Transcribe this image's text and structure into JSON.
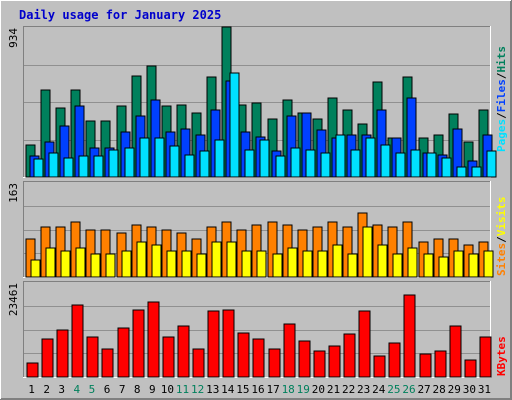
{
  "title": "Daily usage for January 2025",
  "colors": {
    "title": "#0000cc",
    "hits": "#00805c",
    "files": "#0040ff",
    "pages": "#00e0ff",
    "visits": "#ffff00",
    "sites": "#ff8000",
    "kbytes": "#ff0000",
    "weekend_label": "#00805c",
    "background": "#c0c0c0",
    "panel": "#c0c0c0"
  },
  "labels": {
    "pages": "Pages",
    "files": "Files",
    "hits": "Hits",
    "visits": "Visits",
    "sites": "Sites",
    "kbytes": "KBytes",
    "sep": "/"
  },
  "chart_data": [
    {
      "type": "bar",
      "panel": "hits-files-pages",
      "ymax_label": "934",
      "ylim": [
        0,
        934
      ],
      "grid": true,
      "categories": [
        "1",
        "2",
        "3",
        "4",
        "5",
        "6",
        "7",
        "8",
        "9",
        "10",
        "11",
        "12",
        "13",
        "14",
        "15",
        "16",
        "17",
        "18",
        "19",
        "20",
        "21",
        "22",
        "23",
        "24",
        "25",
        "26",
        "27",
        "28",
        "29",
        "30",
        "31"
      ],
      "weekend_days": [
        4,
        5,
        11,
        12,
        18,
        19,
        25,
        26
      ],
      "series": [
        {
          "name": "Hits",
          "values": [
            200,
            540,
            430,
            540,
            350,
            350,
            440,
            630,
            690,
            440,
            450,
            400,
            620,
            934,
            450,
            460,
            360,
            480,
            400,
            360,
            490,
            420,
            330,
            590,
            240,
            620,
            240,
            260,
            390,
            220,
            420
          ]
        },
        {
          "name": "Files",
          "values": [
            130,
            220,
            320,
            440,
            180,
            180,
            280,
            380,
            480,
            280,
            300,
            260,
            420,
            600,
            280,
            250,
            160,
            380,
            400,
            290,
            240,
            260,
            260,
            420,
            240,
            490,
            150,
            140,
            300,
            100,
            260
          ]
        },
        {
          "name": "Pages",
          "values": [
            110,
            150,
            120,
            130,
            130,
            170,
            180,
            240,
            240,
            190,
            140,
            160,
            230,
            650,
            170,
            230,
            130,
            180,
            170,
            150,
            260,
            170,
            240,
            200,
            150,
            170,
            150,
            120,
            60,
            60,
            160
          ]
        }
      ]
    },
    {
      "type": "bar",
      "panel": "visits-sites",
      "ymax_label": "163",
      "ylim": [
        0,
        163
      ],
      "grid": true,
      "series": [
        {
          "name": "Visits",
          "values": [
            30,
            50,
            45,
            50,
            40,
            40,
            45,
            60,
            55,
            45,
            45,
            40,
            60,
            60,
            45,
            45,
            40,
            50,
            45,
            45,
            55,
            40,
            85,
            55,
            40,
            50,
            40,
            35,
            45,
            40,
            45
          ]
        },
        {
          "name": "Sites",
          "values": [
            65,
            85,
            85,
            95,
            80,
            80,
            75,
            90,
            85,
            80,
            75,
            65,
            85,
            95,
            80,
            90,
            95,
            90,
            80,
            85,
            95,
            85,
            110,
            90,
            85,
            95,
            60,
            65,
            65,
            55,
            60
          ]
        }
      ]
    },
    {
      "type": "bar",
      "panel": "kbytes",
      "ymax_label": "23461",
      "ylim": [
        0,
        23461
      ],
      "grid": true,
      "series": [
        {
          "name": "KBytes",
          "values": [
            3500,
            9300,
            11600,
            17900,
            10000,
            6800,
            12100,
            16500,
            18400,
            10000,
            12500,
            6800,
            16200,
            16500,
            10800,
            9400,
            6800,
            13000,
            8800,
            6400,
            7700,
            10500,
            16300,
            5100,
            8300,
            20200,
            5800,
            6400,
            12700,
            4300,
            10000
          ]
        }
      ]
    }
  ]
}
